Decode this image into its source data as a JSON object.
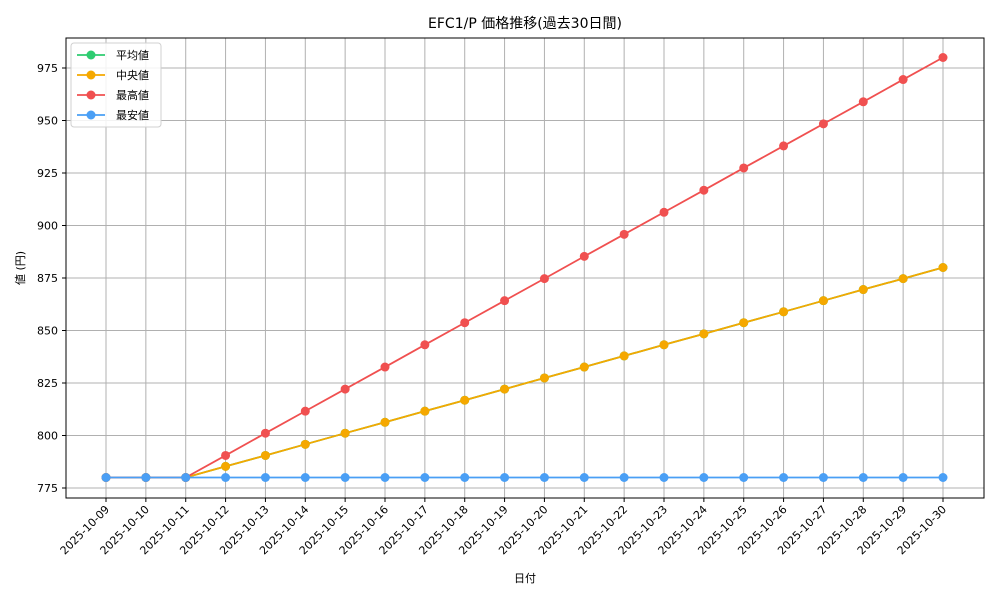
{
  "chart_data": {
    "type": "line",
    "title": "EFC1/P 価格推移(過去30日間)",
    "xlabel": "日付",
    "ylabel": "値 (円)",
    "ylim": [
      770,
      990
    ],
    "yticks": [
      775,
      800,
      825,
      850,
      875,
      900,
      925,
      950,
      975
    ],
    "grid": true,
    "legend_position": "upper left",
    "categories": [
      "2025-10-09",
      "2025-10-10",
      "2025-10-11",
      "2025-10-12",
      "2025-10-13",
      "2025-10-14",
      "2025-10-15",
      "2025-10-16",
      "2025-10-17",
      "2025-10-18",
      "2025-10-19",
      "2025-10-20",
      "2025-10-21",
      "2025-10-22",
      "2025-10-23",
      "2025-10-24",
      "2025-10-25",
      "2025-10-26",
      "2025-10-27",
      "2025-10-28",
      "2025-10-29",
      "2025-10-30"
    ],
    "series": [
      {
        "name": "平均値",
        "color": "#2ecc71",
        "values": [
          780,
          780,
          780,
          785.3,
          790.5,
          795.8,
          801.1,
          806.3,
          811.6,
          816.8,
          822.1,
          827.4,
          832.6,
          837.9,
          843.2,
          848.4,
          853.7,
          858.9,
          864.2,
          869.5,
          874.7,
          880
        ]
      },
      {
        "name": "中央値",
        "color": "#f5a800",
        "values": [
          780,
          780,
          780,
          785.3,
          790.5,
          795.8,
          801.1,
          806.3,
          811.6,
          816.8,
          822.1,
          827.4,
          832.6,
          837.9,
          843.2,
          848.4,
          853.7,
          858.9,
          864.2,
          869.5,
          874.7,
          880
        ]
      },
      {
        "name": "最高値",
        "color": "#f05050",
        "values": [
          780,
          780,
          780,
          790.5,
          801.1,
          811.6,
          822.1,
          832.6,
          843.2,
          853.7,
          864.2,
          874.7,
          885.3,
          895.8,
          906.3,
          916.8,
          927.4,
          937.9,
          948.4,
          958.9,
          969.5,
          980
        ]
      },
      {
        "name": "最安値",
        "color": "#4a9ff5",
        "values": [
          780,
          780,
          780,
          780,
          780,
          780,
          780,
          780,
          780,
          780,
          780,
          780,
          780,
          780,
          780,
          780,
          780,
          780,
          780,
          780,
          780,
          780
        ]
      }
    ]
  }
}
